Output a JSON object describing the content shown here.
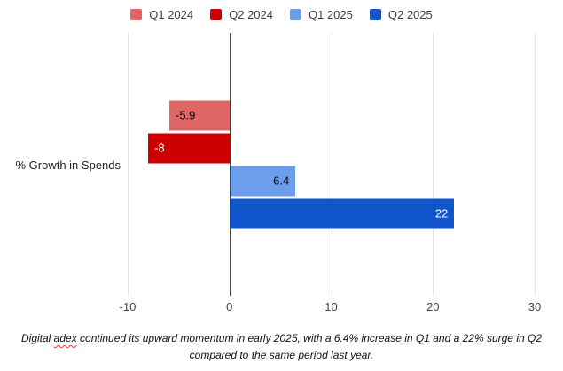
{
  "legend": {
    "items": [
      {
        "label": "Q1 2024",
        "color": "#e06666"
      },
      {
        "label": "Q2 2024",
        "color": "#cc0000"
      },
      {
        "label": "Q1 2025",
        "color": "#6d9eeb"
      },
      {
        "label": "Q2 2025",
        "color": "#1155cc"
      }
    ]
  },
  "chart_data": {
    "type": "bar",
    "orientation": "horizontal",
    "categories": [
      "% Growth in Spends"
    ],
    "series": [
      {
        "name": "Q1 2024",
        "values": [
          -5.9
        ],
        "label": "-5.9",
        "color": "#e06666",
        "label_color": "#000000"
      },
      {
        "name": "Q2 2024",
        "values": [
          -8
        ],
        "label": "-8",
        "color": "#cc0000",
        "label_color": "#ffffff"
      },
      {
        "name": "Q1 2025",
        "values": [
          6.4
        ],
        "label": "6.4",
        "color": "#6d9eeb",
        "label_color": "#000000"
      },
      {
        "name": "Q2 2025",
        "values": [
          22
        ],
        "label": "22",
        "color": "#1155cc",
        "label_color": "#ffffff"
      }
    ],
    "x_ticks": [
      -10,
      0,
      10,
      20,
      30
    ],
    "xlim": [
      -10,
      30
    ],
    "grid": true,
    "legend_position": "top",
    "gridline_color": "#e3e3e3",
    "zero_line_color": "#424242",
    "background_color": "#ffffff"
  },
  "caption": {
    "part1": "Digital ",
    "misspelled": "adex",
    "part2": " continued its upward momentum in early 2025, with a 6.4% increase in Q1 and a 22% surge in Q2 compared to the same period last year."
  }
}
